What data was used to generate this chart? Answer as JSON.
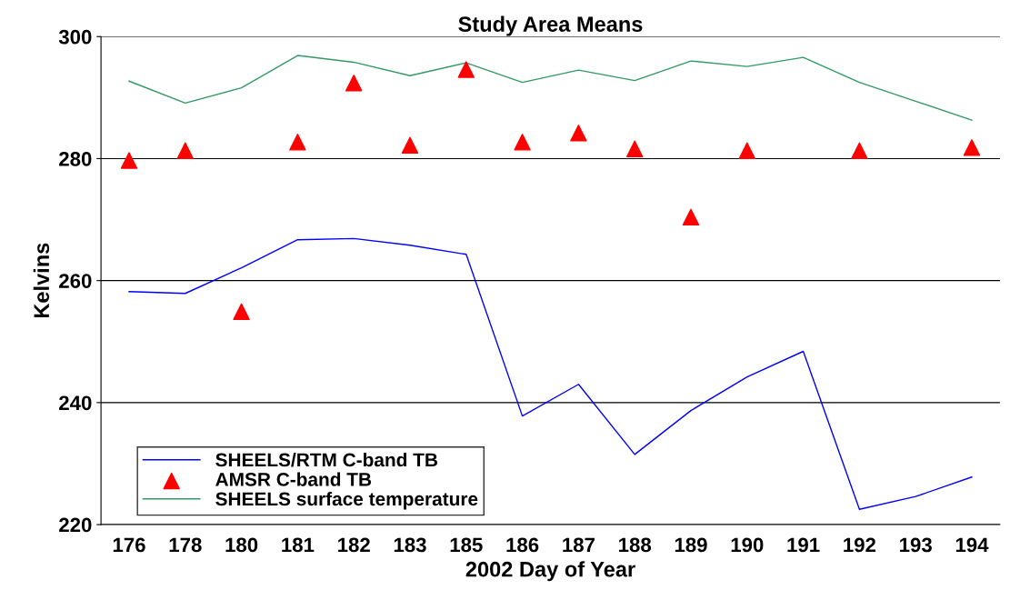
{
  "chart_data": {
    "type": "line",
    "title": "Study Area Means",
    "xlabel": "2002 Day of Year",
    "ylabel": "Kelvins",
    "categories": [
      "176",
      "178",
      "180",
      "181",
      "182",
      "183",
      "185",
      "186",
      "187",
      "188",
      "189",
      "190",
      "191",
      "192",
      "193",
      "194"
    ],
    "series": [
      {
        "name": "SHEELS/RTM C-band TB",
        "color": "#0000ff",
        "marker": "none",
        "values": [
          258.2,
          257.9,
          262.1,
          266.7,
          266.9,
          265.8,
          264.3,
          237.8,
          243.0,
          231.5,
          238.7,
          244.2,
          248.4,
          222.5,
          224.6,
          227.8
        ]
      },
      {
        "name": "AMSR C-band TB",
        "type": "scatter",
        "color": "#ff0000",
        "marker": "triangle",
        "values": [
          279.7,
          281.3,
          254.9,
          282.7,
          292.4,
          282.2,
          294.6,
          282.7,
          284.2,
          281.6,
          270.4,
          281.3,
          null,
          281.3,
          null,
          281.8
        ]
      },
      {
        "name": "SHEELS surface temperature",
        "color": "#339966",
        "marker": "none",
        "values": [
          292.7,
          289.1,
          291.6,
          296.9,
          295.8,
          293.6,
          295.7,
          292.5,
          294.5,
          292.8,
          296.0,
          295.1,
          296.6,
          292.5,
          289.4,
          286.3
        ]
      }
    ],
    "ylim": [
      220,
      300
    ],
    "yticks": [
      220,
      240,
      260,
      280,
      300
    ],
    "grid": "y",
    "legend": "bottom left"
  }
}
